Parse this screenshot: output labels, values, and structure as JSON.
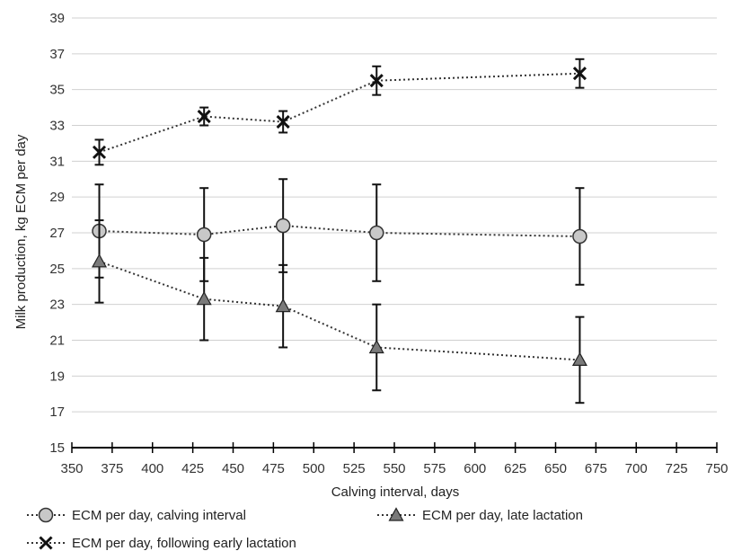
{
  "chart_data": {
    "type": "line",
    "xlabel": "Calving interval, days",
    "ylabel": "Milk production, kg ECM per day",
    "xlim": [
      350,
      750
    ],
    "ylim": [
      15,
      39
    ],
    "x_ticks": [
      350,
      375,
      400,
      425,
      450,
      475,
      500,
      525,
      550,
      575,
      600,
      625,
      650,
      675,
      700,
      725,
      750
    ],
    "y_ticks": [
      15,
      17,
      19,
      21,
      23,
      25,
      27,
      29,
      31,
      33,
      35,
      37,
      39
    ],
    "grid": "horizontal",
    "legend_position": "bottom",
    "series": [
      {
        "name": "ECM per day, calving interval",
        "marker": "circle",
        "line_style": "dotted",
        "x": [
          367,
          432,
          481,
          539,
          665
        ],
        "y": [
          27.1,
          26.9,
          27.4,
          27.0,
          26.8
        ],
        "error": [
          2.6,
          2.6,
          2.6,
          2.7,
          2.7
        ]
      },
      {
        "name": "ECM per day, late lactation",
        "marker": "triangle",
        "line_style": "dotted",
        "x": [
          367,
          432,
          481,
          539,
          665
        ],
        "y": [
          25.4,
          23.3,
          22.9,
          20.6,
          19.9
        ],
        "error": [
          2.3,
          2.3,
          2.3,
          2.4,
          2.4
        ]
      },
      {
        "name": "ECM per day, following early lactation",
        "marker": "x",
        "line_style": "dotted",
        "x": [
          367,
          432,
          481,
          539,
          665
        ],
        "y": [
          31.5,
          33.5,
          33.2,
          35.5,
          35.9
        ],
        "error": [
          0.7,
          0.5,
          0.6,
          0.8,
          0.8
        ]
      }
    ]
  }
}
